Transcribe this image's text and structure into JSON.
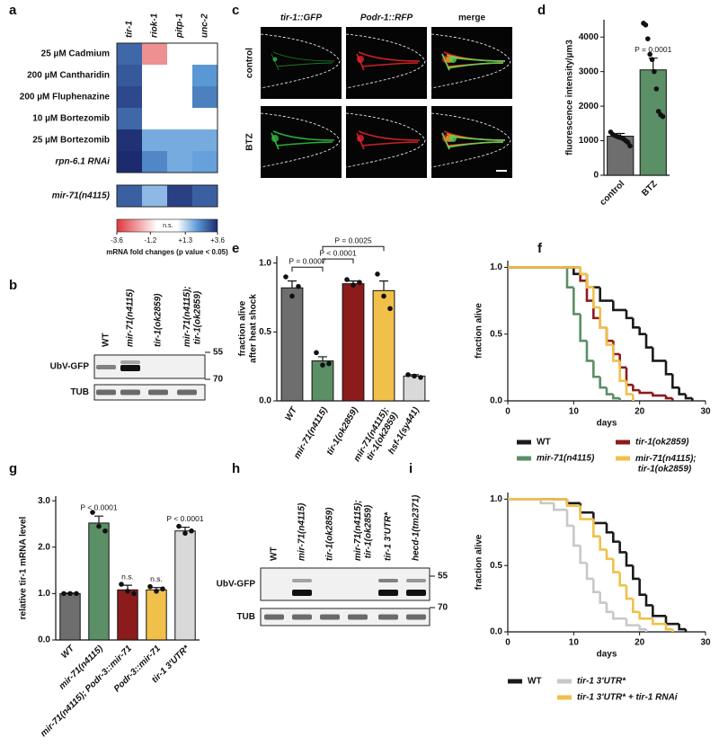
{
  "chart_data": [
    {
      "type": "heatmap",
      "label": "a",
      "columns": [
        "tir-1",
        "riok-1",
        "pitp-1",
        "unc-2"
      ],
      "rows": [
        "25 µM Cadmium",
        "200 µM Cantharidin",
        "200 µM Fluphenazine",
        "10 µM Bortezomib",
        "25 µM Bortezomib",
        "rpn-6.1 RNAi",
        "mir-71(n4115)"
      ],
      "values": [
        [
          2.8,
          -2.0,
          null,
          null
        ],
        [
          3.0,
          null,
          null,
          2.2
        ],
        [
          3.2,
          null,
          null,
          2.5
        ],
        [
          2.8,
          null,
          null,
          null
        ],
        [
          3.5,
          1.8,
          1.8,
          1.8
        ],
        [
          3.6,
          2.4,
          1.8,
          2.0
        ],
        [
          2.9,
          1.5,
          3.3,
          2.9
        ]
      ],
      "colorbar_ticks": [
        -3.6,
        -1.2,
        {
          "value": 1.3,
          "label": "+1.3"
        },
        {
          "value": 3.6,
          "label": "+3.6"
        }
      ],
      "ns_label": "n.s.",
      "colorbar_label": "mRNA fold changes (p value < 0.05)",
      "colors": {
        "negative": "#e0373c",
        "mid": "#5b9ad8",
        "positive": "#1c2a6e"
      }
    },
    {
      "type": "bar",
      "label": "d",
      "categories": [
        "control",
        "BTZ"
      ],
      "values": [
        1130,
        3050
      ],
      "errors": [
        80,
        340
      ],
      "points": [
        [
          1250,
          1180,
          1150,
          1120,
          1100,
          1080,
          1050,
          1000,
          950,
          850
        ],
        [
          4400,
          4350,
          3950,
          3500,
          3350,
          3000,
          2500,
          1850,
          1750,
          1700
        ]
      ],
      "colors": [
        "#6e6e6e",
        "#5b8f66"
      ],
      "ylim": [
        0,
        4500
      ],
      "yticks": [
        0,
        1000,
        2000,
        3000,
        4000
      ],
      "y_label": "fluorescence intensity/µm3",
      "bar_labels": [
        null,
        "P = 0.0001"
      ]
    },
    {
      "type": "bar",
      "label": "e",
      "categories": [
        "WT",
        "mir-71(n4115)",
        "tir-1(ok2859)",
        "mir-71(n4115); tir-1(ok2859)",
        "hsf-1(sy441)"
      ],
      "values": [
        0.82,
        0.29,
        0.85,
        0.8,
        0.18
      ],
      "errors": [
        0.05,
        0.03,
        0.02,
        0.07,
        0.01
      ],
      "points": [
        [
          0.9,
          0.76,
          0.83
        ],
        [
          0.35,
          0.26,
          0.27
        ],
        [
          0.88,
          0.84,
          0.86
        ],
        [
          0.92,
          0.76,
          0.67
        ],
        [
          0.19,
          0.18,
          0.17
        ]
      ],
      "colors": [
        "#6e6e6e",
        "#5b8f66",
        "#8c1c1c",
        "#f0c04a",
        "#d9d9d9"
      ],
      "ylim": [
        0,
        1.05
      ],
      "yticks": [
        {
          "value": 0,
          "label": "0.0"
        },
        0.5,
        {
          "value": 1,
          "label": "1.0"
        }
      ],
      "y_label": [
        "fraction alive",
        "after heat shock"
      ],
      "annotations": [
        "P = 0.0007",
        "P < 0.0001",
        "P = 0.0025"
      ]
    },
    {
      "type": "line",
      "label": "f",
      "step": true,
      "xlim": [
        0,
        30
      ],
      "xticks": [
        0,
        10,
        20,
        30
      ],
      "ylim": [
        0,
        1.05
      ],
      "yticks": [
        {
          "value": 0,
          "label": "0.0"
        },
        0.5,
        {
          "value": 1,
          "label": "1.0"
        }
      ],
      "x_label": "days",
      "y_label": "fraction alive",
      "series": [
        {
          "name": "WT",
          "color": "#1a1a1a",
          "x": [
            0,
            8,
            10,
            12,
            14,
            16,
            18,
            19,
            20,
            21,
            22,
            24,
            25,
            26,
            27,
            28
          ],
          "values": [
            1,
            1,
            0.95,
            0.85,
            0.75,
            0.68,
            0.62,
            0.55,
            0.5,
            0.4,
            0.3,
            0.2,
            0.1,
            0.05,
            0.02,
            0
          ]
        },
        {
          "name": "mir-71(n4115)",
          "color": "#5b8f66",
          "x": [
            0,
            8,
            9,
            10,
            11,
            12,
            13,
            14,
            15,
            16,
            17
          ],
          "values": [
            1,
            1,
            0.85,
            0.65,
            0.45,
            0.3,
            0.18,
            0.1,
            0.05,
            0.02,
            0
          ]
        },
        {
          "name": "tir-1(ok2859)",
          "color": "#8c1c1c",
          "x": [
            0,
            9,
            11,
            12,
            13,
            14,
            15,
            16,
            17,
            18,
            19,
            20,
            22,
            24,
            25
          ],
          "values": [
            1,
            1,
            0.9,
            0.75,
            0.62,
            0.55,
            0.45,
            0.35,
            0.25,
            0.12,
            0.08,
            0.06,
            0.04,
            0.02,
            0
          ]
        },
        {
          "name": "mir-71(n4115); tir-1(ok2859)",
          "color": "#f0c04a",
          "x": [
            0,
            10,
            11,
            12,
            13,
            14,
            15,
            16,
            17,
            18,
            19
          ],
          "values": [
            1,
            1,
            0.95,
            0.85,
            0.7,
            0.55,
            0.42,
            0.3,
            0.15,
            0.05,
            0
          ]
        }
      ]
    },
    {
      "type": "bar",
      "label": "g",
      "categories": [
        "WT",
        "mir-71(n4115)",
        "mir-71(n4115); Podr-3::mir-71",
        "Podr-3::mir-71",
        "tir-1 3'UTR*"
      ],
      "values": [
        1.0,
        2.52,
        1.08,
        1.08,
        2.35
      ],
      "errors": [
        0.01,
        0.15,
        0.1,
        0.05,
        0.08
      ],
      "points": [
        [
          1,
          1,
          1
        ],
        [
          2.75,
          2.45,
          2.35
        ],
        [
          1.2,
          1.05,
          1.0
        ],
        [
          1.15,
          1.05,
          1.1
        ],
        [
          2.45,
          2.3,
          2.35
        ]
      ],
      "colors": [
        "#6e6e6e",
        "#5b8f66",
        "#8c1c1c",
        "#f0c04a",
        "#d9d9d9"
      ],
      "ylim": [
        0,
        3.1
      ],
      "yticks": [
        {
          "value": 0,
          "label": "0.0"
        },
        {
          "value": 1,
          "label": "1.0"
        },
        {
          "value": 2,
          "label": "2.0"
        },
        {
          "value": 3,
          "label": "3.0"
        }
      ],
      "y_label": "relative tir-1 mRNA level",
      "bar_labels": [
        null,
        "P < 0.0001",
        "n.s.",
        "n.s.",
        "P < 0.0001"
      ]
    },
    {
      "type": "line",
      "label": "i",
      "step": true,
      "xlim": [
        0,
        30
      ],
      "xticks": [
        0,
        10,
        20,
        30
      ],
      "ylim": [
        0,
        1.05
      ],
      "yticks": [
        {
          "value": 0,
          "label": "0.0"
        },
        0.5,
        {
          "value": 1,
          "label": "1.0"
        }
      ],
      "x_label": "days",
      "y_label": "fraction alive",
      "series": [
        {
          "name": "WT",
          "color": "#1a1a1a",
          "x": [
            0,
            7,
            9,
            11,
            13,
            15,
            16,
            17,
            18,
            19,
            20,
            21,
            22,
            24,
            26,
            27
          ],
          "values": [
            1,
            1,
            0.97,
            0.9,
            0.82,
            0.75,
            0.68,
            0.6,
            0.5,
            0.4,
            0.28,
            0.2,
            0.12,
            0.06,
            0.02,
            0
          ]
        },
        {
          "name": "tir-1 3'UTR*",
          "color": "#c8c8c8",
          "x": [
            0,
            5,
            7,
            9,
            10,
            11,
            12,
            13,
            14,
            15,
            16,
            18,
            20,
            21
          ],
          "values": [
            1,
            0.97,
            0.92,
            0.8,
            0.65,
            0.52,
            0.4,
            0.3,
            0.22,
            0.15,
            0.1,
            0.05,
            0.02,
            0
          ]
        },
        {
          "name": "tir-1 3'UTR* + tir-1 RNAi",
          "color": "#f0c04a",
          "x": [
            0,
            7,
            9,
            11,
            13,
            14,
            15,
            16,
            17,
            18,
            19,
            20,
            22,
            24,
            25
          ],
          "values": [
            1,
            1,
            0.95,
            0.85,
            0.72,
            0.62,
            0.55,
            0.45,
            0.35,
            0.25,
            0.15,
            0.1,
            0.06,
            0.02,
            0
          ]
        }
      ]
    }
  ],
  "panel_b": {
    "label": "b",
    "lanes": [
      "WT",
      "mir-71(n4115)",
      "tir-1(ok2859)",
      "mir-71(n4115); tir-1(ok2859)"
    ],
    "rows": [
      "UbV-GFP",
      "TUB"
    ],
    "markers": [
      "55",
      "70"
    ]
  },
  "panel_c": {
    "label": "c",
    "columns": [
      "tir-1::GFP",
      "Podr-1::RFP",
      "merge"
    ],
    "rows": [
      "control",
      "BTZ"
    ]
  },
  "panel_h": {
    "label": "h",
    "lanes": [
      "WT",
      "mir-71(n4115)",
      "tir-1(ok2859)",
      "mir-71(n4115); tir-1(ok2859)",
      "tir-1 3'UTR*",
      "hecd-1(tm2371)"
    ],
    "rows": [
      "UbV-GFP",
      "TUB"
    ],
    "markers": [
      "55",
      "70"
    ]
  }
}
